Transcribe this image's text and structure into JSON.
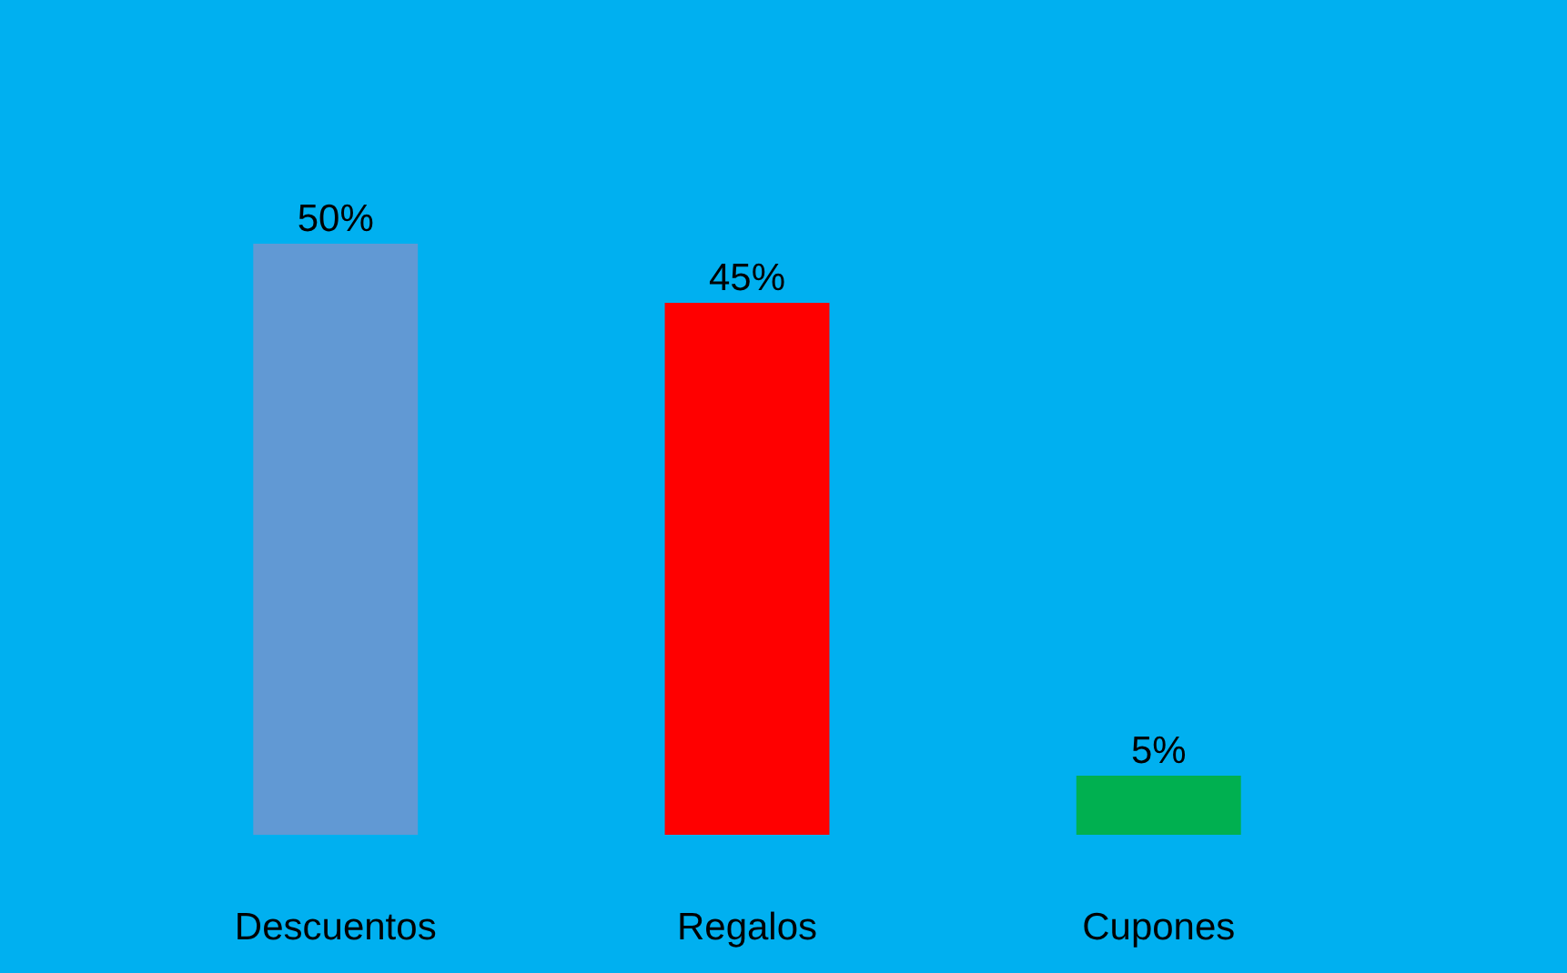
{
  "chart_data": {
    "type": "bar",
    "categories": [
      "Descuentos",
      "Regalos",
      "Cupones"
    ],
    "values": [
      50,
      45,
      5
    ],
    "colors": [
      "#6199d4",
      "#ff0000",
      "#00b050"
    ],
    "value_labels": [
      "50%",
      "45%",
      "5%"
    ]
  }
}
